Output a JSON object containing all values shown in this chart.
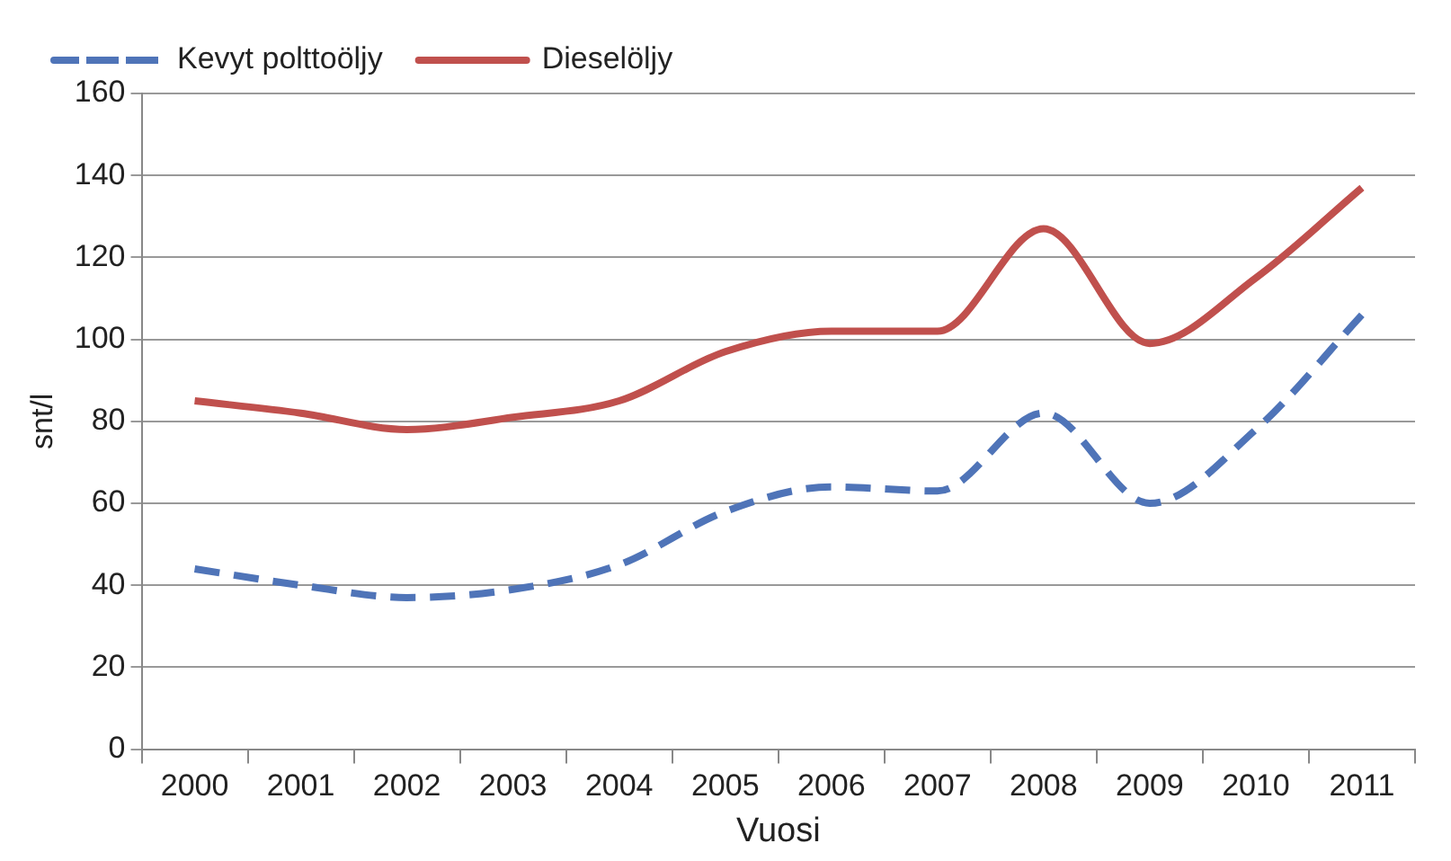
{
  "chart_data": {
    "type": "line",
    "xlabel": "Vuosi",
    "ylabel": "snt/l",
    "categories": [
      "2000",
      "2001",
      "2002",
      "2003",
      "2004",
      "2005",
      "2006",
      "2007",
      "2008",
      "2009",
      "2010",
      "2011"
    ],
    "series": [
      {
        "name": "Kevyt polttoöljy",
        "color": "#4f74b8",
        "line_style": "dashed",
        "values": [
          44,
          40,
          37,
          39,
          45,
          58,
          64,
          63,
          82,
          60,
          78,
          106
        ]
      },
      {
        "name": "Dieselöljy",
        "color": "#c0504d",
        "line_style": "solid",
        "values": [
          85,
          82,
          78,
          81,
          85,
          97,
          102,
          102,
          127,
          99,
          115,
          137
        ]
      }
    ],
    "ylim": [
      0,
      160
    ],
    "yticks": [
      0,
      20,
      40,
      60,
      80,
      100,
      120,
      140,
      160
    ],
    "grid": "y",
    "legend": "top left",
    "marker": "none"
  }
}
